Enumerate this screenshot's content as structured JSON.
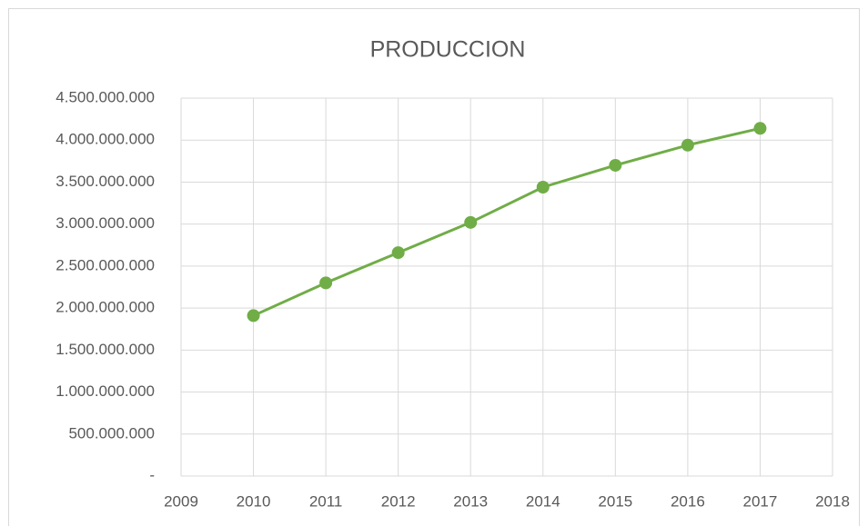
{
  "chart_data": {
    "type": "line",
    "title": "PRODUCCION",
    "x": [
      2010,
      2011,
      2012,
      2013,
      2014,
      2015,
      2016,
      2017
    ],
    "series": [
      {
        "name": "PRODUCCION",
        "color": "#70ad47",
        "values": [
          1910000000,
          2300000000,
          2660000000,
          3020000000,
          3440000000,
          3700000000,
          3940000000,
          4140000000
        ]
      }
    ],
    "xlim": [
      2009,
      2018
    ],
    "xticks": [
      2009,
      2010,
      2011,
      2012,
      2013,
      2014,
      2015,
      2016,
      2017,
      2018
    ],
    "ylim": [
      0,
      4500000000
    ],
    "yticks": [
      {
        "value": 0,
        "label": "-"
      },
      {
        "value": 500000000,
        "label": "500.000.000"
      },
      {
        "value": 1000000000,
        "label": "1.000.000.000"
      },
      {
        "value": 1500000000,
        "label": "1.500.000.000"
      },
      {
        "value": 2000000000,
        "label": "2.000.000.000"
      },
      {
        "value": 2500000000,
        "label": "2.500.000.000"
      },
      {
        "value": 3000000000,
        "label": "3.000.000.000"
      },
      {
        "value": 3500000000,
        "label": "3.500.000.000"
      },
      {
        "value": 4000000000,
        "label": "4.000.000.000"
      },
      {
        "value": 4500000000,
        "label": "4.500.000.000"
      }
    ],
    "grid": true
  }
}
